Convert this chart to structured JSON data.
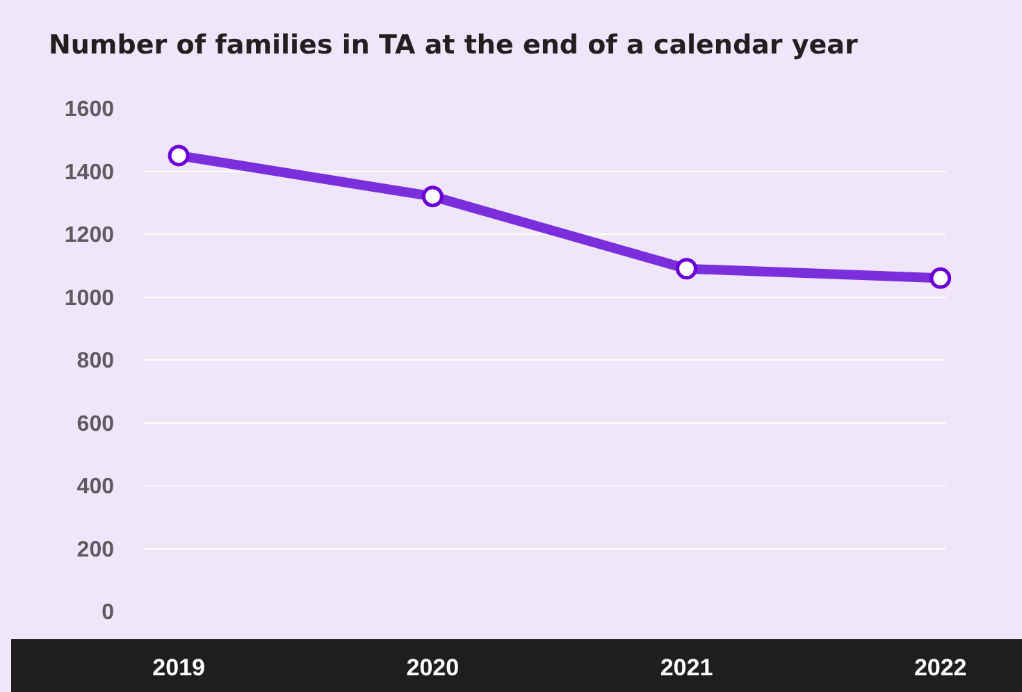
{
  "chart_data": {
    "type": "line",
    "title": "Number of families in TA at the end of a calendar year",
    "categories": [
      "2019",
      "2020",
      "2021",
      "2022"
    ],
    "series": [
      {
        "color": "#7b2fdc",
        "values": [
          1450,
          1320,
          1090,
          1060
        ]
      }
    ],
    "ylim": [
      0,
      1600
    ],
    "yticks": [
      0,
      200,
      400,
      600,
      800,
      1000,
      1200,
      1400,
      1600
    ],
    "grid": "y",
    "marker": "circle",
    "line_style": "solid"
  }
}
